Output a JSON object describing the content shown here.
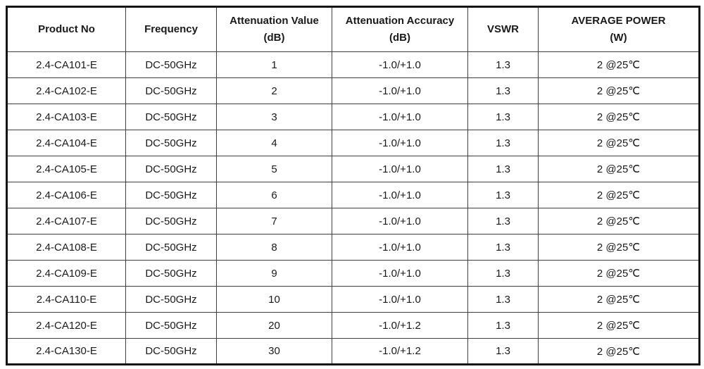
{
  "colors": {
    "background": "#ffffff",
    "outer_border": "#141414",
    "grid_line": "#3f3f3f",
    "text": "#1a1a1a"
  },
  "table": {
    "columns": [
      {
        "line1": "Product No",
        "line2": ""
      },
      {
        "line1": "Frequency",
        "line2": ""
      },
      {
        "line1": "Attenuation Value",
        "line2": "(dB)"
      },
      {
        "line1": "Attenuation Accuracy",
        "line2": "(dB)"
      },
      {
        "line1": "VSWR",
        "line2": ""
      },
      {
        "line1": "AVERAGE POWER",
        "line2": "(W)"
      }
    ],
    "rows": [
      [
        "2.4-CA101-E",
        "DC-50GHz",
        "1",
        "-1.0/+1.0",
        "1.3",
        "2 @25℃"
      ],
      [
        "2.4-CA102-E",
        "DC-50GHz",
        "2",
        "-1.0/+1.0",
        "1.3",
        "2 @25℃"
      ],
      [
        "2.4-CA103-E",
        "DC-50GHz",
        "3",
        "-1.0/+1.0",
        "1.3",
        "2 @25℃"
      ],
      [
        "2.4-CA104-E",
        "DC-50GHz",
        "4",
        "-1.0/+1.0",
        "1.3",
        "2 @25℃"
      ],
      [
        "2.4-CA105-E",
        "DC-50GHz",
        "5",
        "-1.0/+1.0",
        "1.3",
        "2 @25℃"
      ],
      [
        "2.4-CA106-E",
        "DC-50GHz",
        "6",
        "-1.0/+1.0",
        "1.3",
        "2 @25℃"
      ],
      [
        "2.4-CA107-E",
        "DC-50GHz",
        "7",
        "-1.0/+1.0",
        "1.3",
        "2 @25℃"
      ],
      [
        "2.4-CA108-E",
        "DC-50GHz",
        "8",
        "-1.0/+1.0",
        "1.3",
        "2 @25℃"
      ],
      [
        "2.4-CA109-E",
        "DC-50GHz",
        "9",
        "-1.0/+1.0",
        "1.3",
        "2 @25℃"
      ],
      [
        "2.4-CA110-E",
        "DC-50GHz",
        "10",
        "-1.0/+1.0",
        "1.3",
        "2 @25℃"
      ],
      [
        "2.4-CA120-E",
        "DC-50GHz",
        "20",
        "-1.0/+1.2",
        "1.3",
        "2 @25℃"
      ],
      [
        "2.4-CA130-E",
        "DC-50GHz",
        "30",
        "-1.0/+1.2",
        "1.3",
        "2 @25℃"
      ]
    ]
  }
}
